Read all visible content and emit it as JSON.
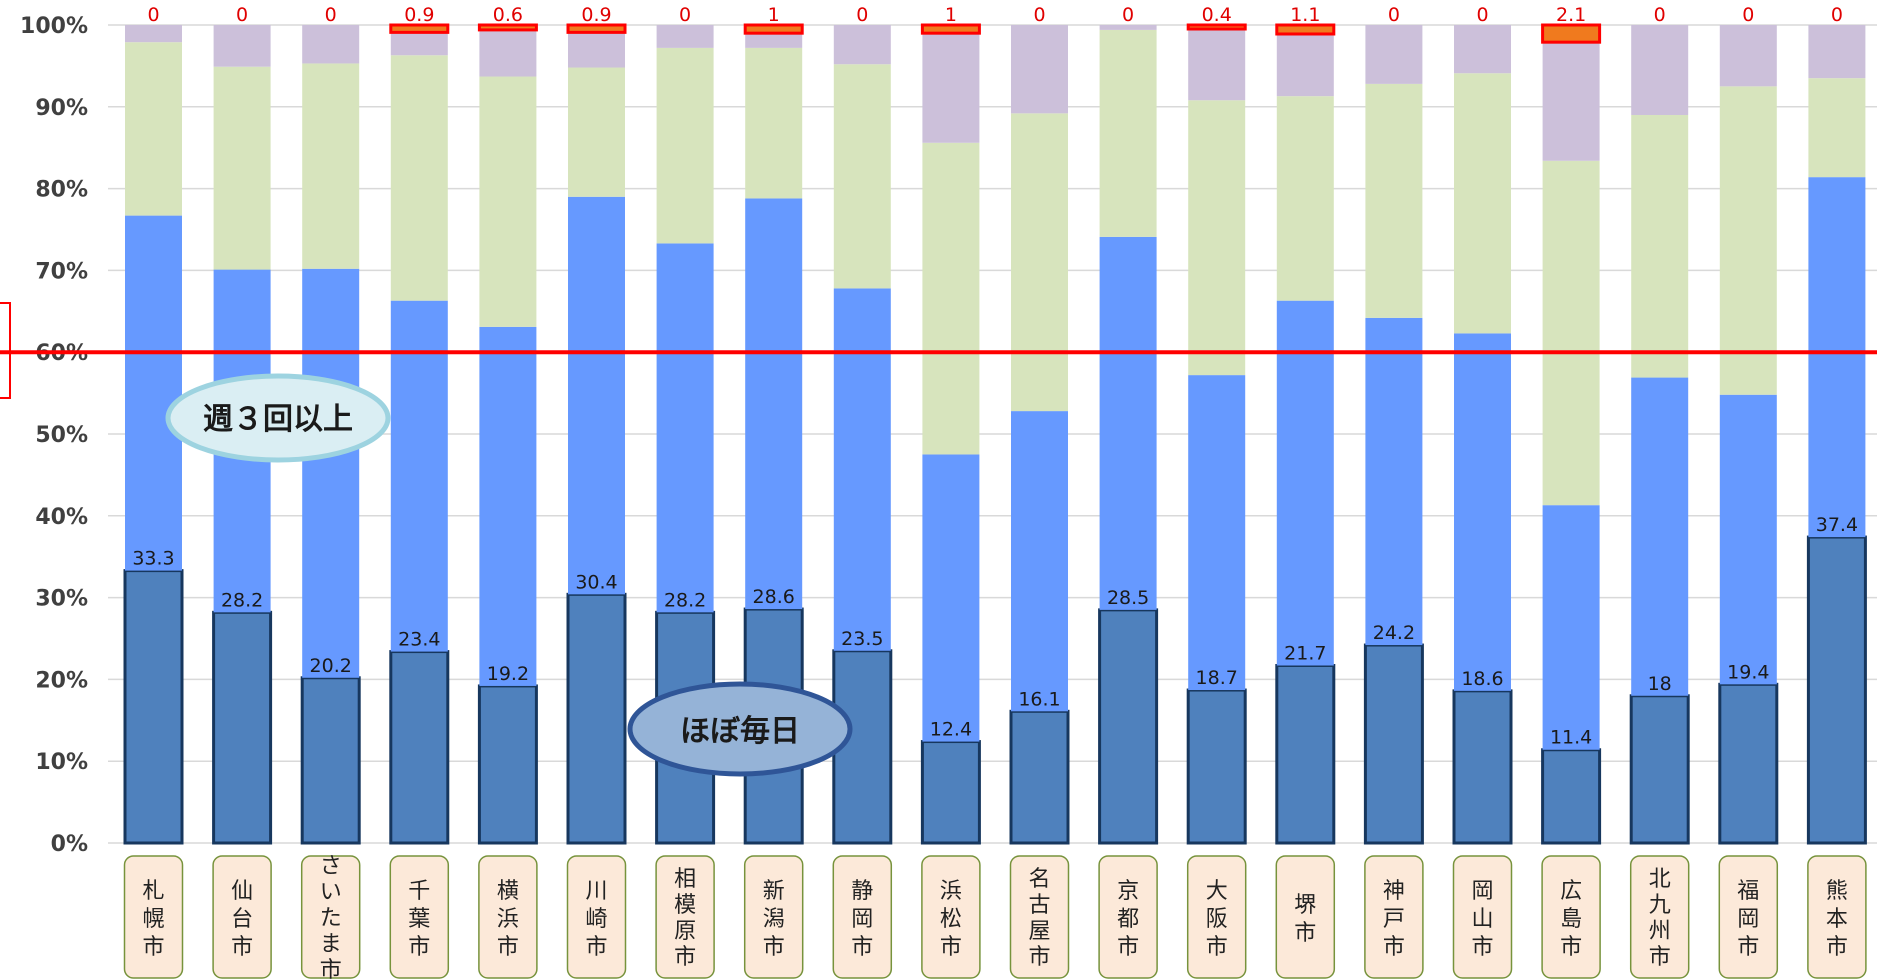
{
  "chart_data": {
    "type": "bar",
    "stacked": true,
    "orientation": "vertical",
    "categories": [
      "札幌市",
      "仙台市",
      "さいたま市",
      "千葉市",
      "横浜市",
      "川崎市",
      "相模原市",
      "新潟市",
      "静岡市",
      "浜松市",
      "名古屋市",
      "京都市",
      "大阪市",
      "堺市",
      "神戸市",
      "岡山市",
      "広島市",
      "北九州市",
      "福岡市",
      "熊本市"
    ],
    "series": [
      {
        "values": [
          33.3,
          28.2,
          20.2,
          23.4,
          19.2,
          30.4,
          28.2,
          28.6,
          23.5,
          12.4,
          16.1,
          28.5,
          18.7,
          21.7,
          24.2,
          18.6,
          11.4,
          18,
          19.4,
          37.4
        ],
        "color": "#4f81bd",
        "border": "#17375e",
        "labels_shown": true
      },
      {
        "values": [
          43.4,
          41.9,
          50,
          42.9,
          43.9,
          48.6,
          45.1,
          50.2,
          44.3,
          35.1,
          36.7,
          45.6,
          38.5,
          44.6,
          40,
          43.7,
          29.9,
          38.9,
          35.4,
          44
        ],
        "color": "#6699ff"
      },
      {
        "values": [
          21.2,
          24.8,
          25.1,
          30,
          30.6,
          15.8,
          23.9,
          18.4,
          27.4,
          38.1,
          36.4,
          25.3,
          33.6,
          25,
          28.6,
          31.8,
          42.1,
          32.1,
          37.7,
          12.1
        ],
        "color": "#d7e4bd"
      },
      {
        "values": [
          2.1,
          5.1,
          4.7,
          2.8,
          5.7,
          4.3,
          2.8,
          1.8,
          4.8,
          13.4,
          10.8,
          0.6,
          8.8,
          7.6,
          7.2,
          5.9,
          14.5,
          11,
          7.5,
          6.5
        ],
        "color": "#ccc0da"
      },
      {
        "values": [
          0,
          0,
          0,
          0.9,
          0.6,
          0.9,
          0,
          1,
          0,
          1,
          0,
          0,
          0.4,
          1.1,
          0,
          0,
          2.1,
          0,
          0,
          0
        ],
        "color": "#f07a1e",
        "border": "#ff0000",
        "labels_shown": true
      }
    ],
    "ylim": [
      0,
      100
    ],
    "yticks": [
      "0%",
      "10%",
      "20%",
      "30%",
      "40%",
      "50%",
      "60%",
      "70%",
      "80%",
      "90%",
      "100%"
    ],
    "gridlines": "horizontal",
    "reference_line": {
      "value": 60,
      "color": "#ff0000"
    },
    "annotations": {
      "weekly": "週３回以上",
      "daily": "ほぼ毎日"
    }
  }
}
